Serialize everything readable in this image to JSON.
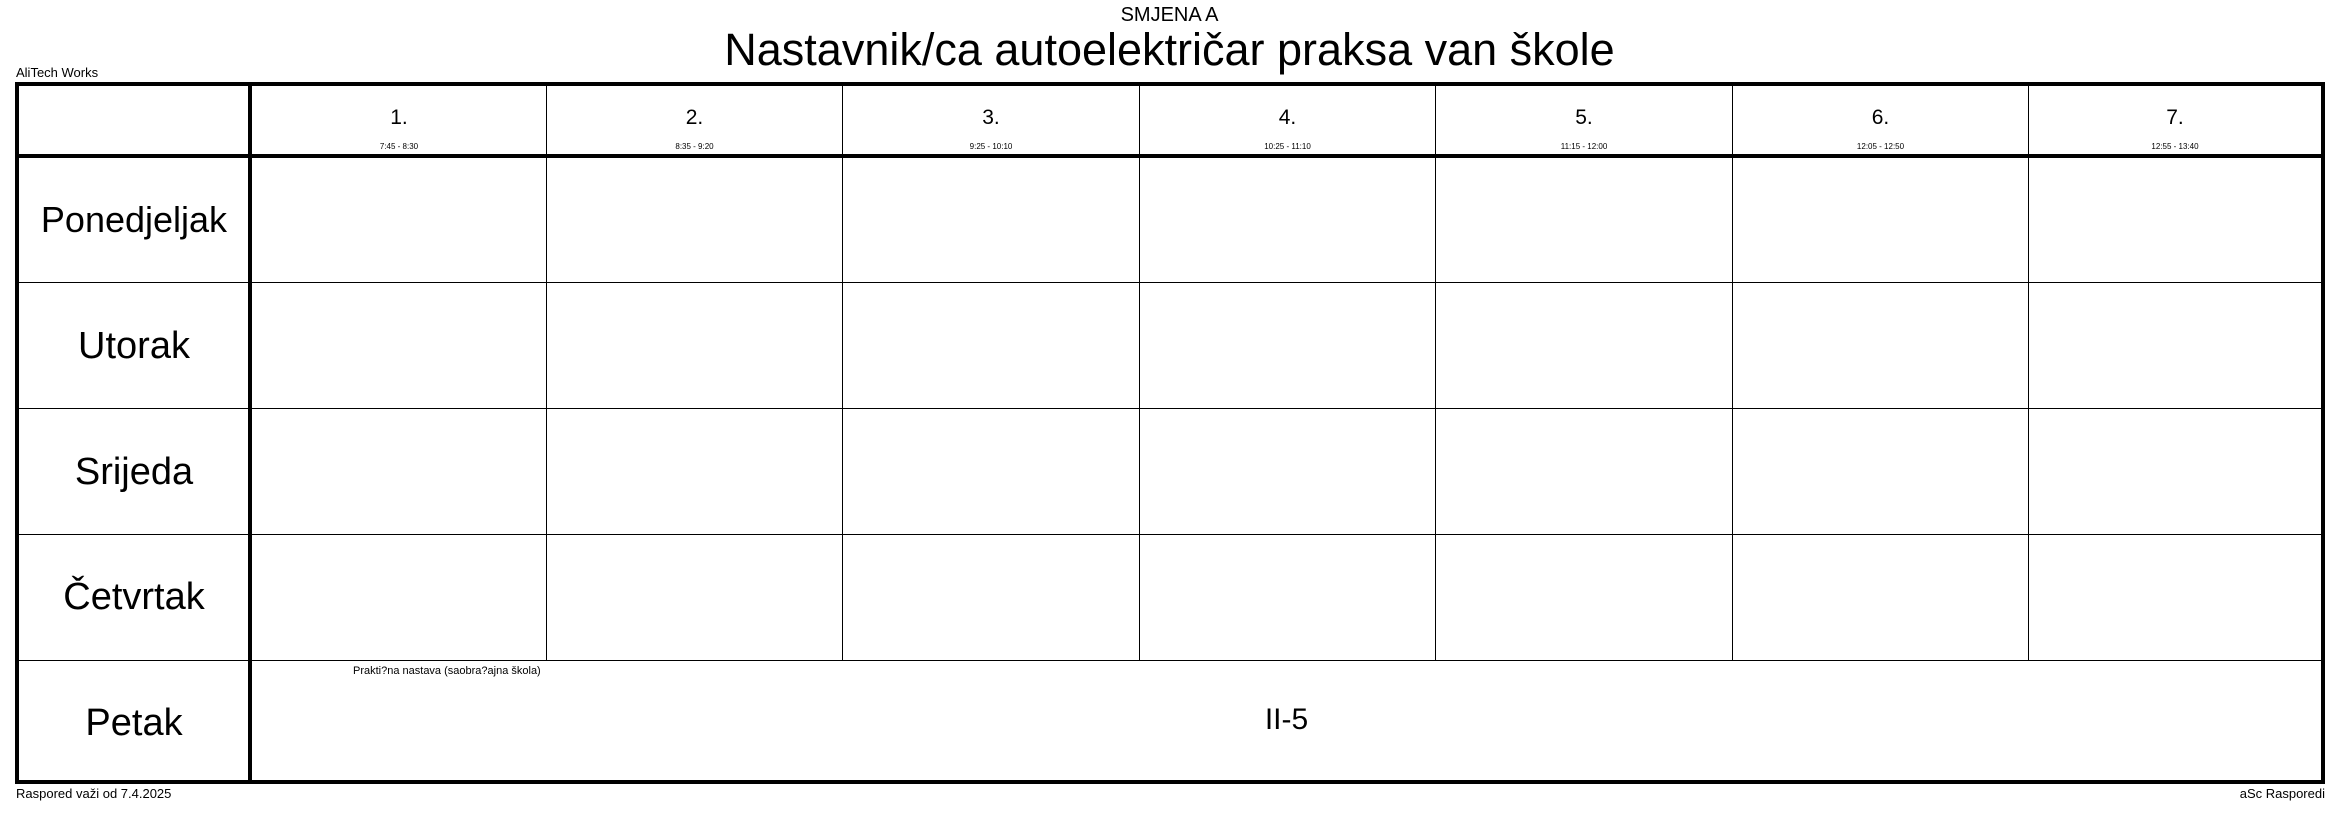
{
  "header": {
    "shift": "SMJENA A",
    "title": "Nastavnik/ca autoelektričar praksa van škole",
    "school": "AliTech Works"
  },
  "periods": [
    {
      "number": "1.",
      "time": "7:45 - 8:30"
    },
    {
      "number": "2.",
      "time": "8:35 - 9:20"
    },
    {
      "number": "3.",
      "time": "9:25 - 10:10"
    },
    {
      "number": "4.",
      "time": "10:25 - 11:10"
    },
    {
      "number": "5.",
      "time": "11:15 - 12:00"
    },
    {
      "number": "6.",
      "time": "12:05 - 12:50"
    },
    {
      "number": "7.",
      "time": "12:55 - 13:40"
    }
  ],
  "days": [
    {
      "name": "Ponedjeljak"
    },
    {
      "name": "Utorak"
    },
    {
      "name": "Srijeda"
    },
    {
      "name": "Četvrtak"
    },
    {
      "name": "Petak"
    }
  ],
  "lessons": [
    {
      "day": "Petak",
      "note": "Prakti?na nastava (saobra?ajna škola)",
      "room": "II-5"
    }
  ],
  "footer": {
    "valid_from": "Raspored važi od 7.4.2025",
    "software": "aSc Rasporedi"
  }
}
